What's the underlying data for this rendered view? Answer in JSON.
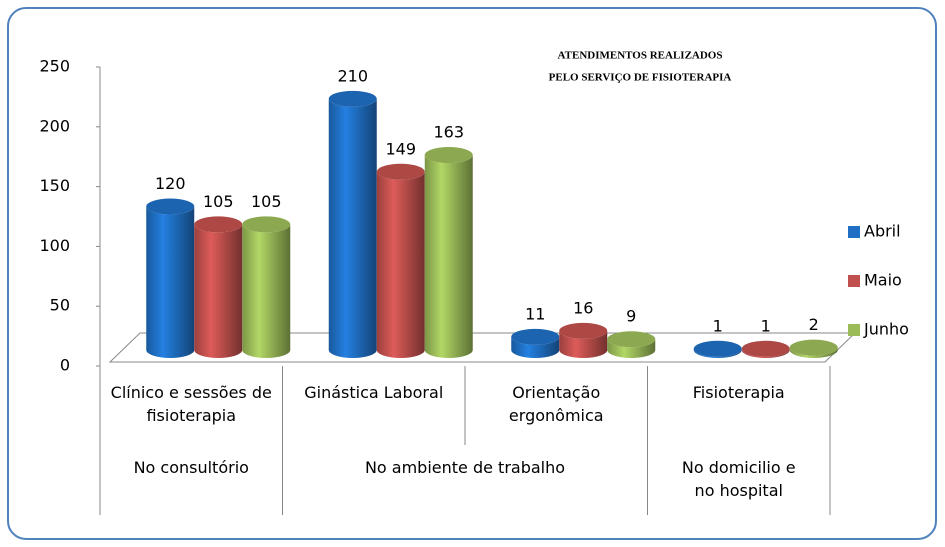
{
  "chart_data": {
    "type": "bar3d",
    "title": [
      "ATENDIMENTOS REALIZADOS",
      "PELO SERVIÇO DE FISIOTERAPIA"
    ],
    "categories": [
      "Clínico e sessões de fisioterapia",
      "Ginástica Laboral",
      "Orientação ergonômica",
      "Fisioterapia"
    ],
    "groups": [
      "No consultório",
      "No ambiente de trabalho",
      "No domicilio e no hospital"
    ],
    "series": [
      {
        "name": "Abril",
        "color": "#1f6fc4",
        "values": [
          120,
          210,
          11,
          1
        ]
      },
      {
        "name": "Maio",
        "color": "#c0504d",
        "values": [
          105,
          149,
          16,
          1
        ]
      },
      {
        "name": "Junho",
        "color": "#9bbb59",
        "values": [
          105,
          163,
          9,
          2
        ]
      }
    ],
    "ylim": [
      0,
      250
    ],
    "yticks": [
      0,
      50,
      100,
      150,
      200,
      250
    ],
    "legend": "right"
  }
}
